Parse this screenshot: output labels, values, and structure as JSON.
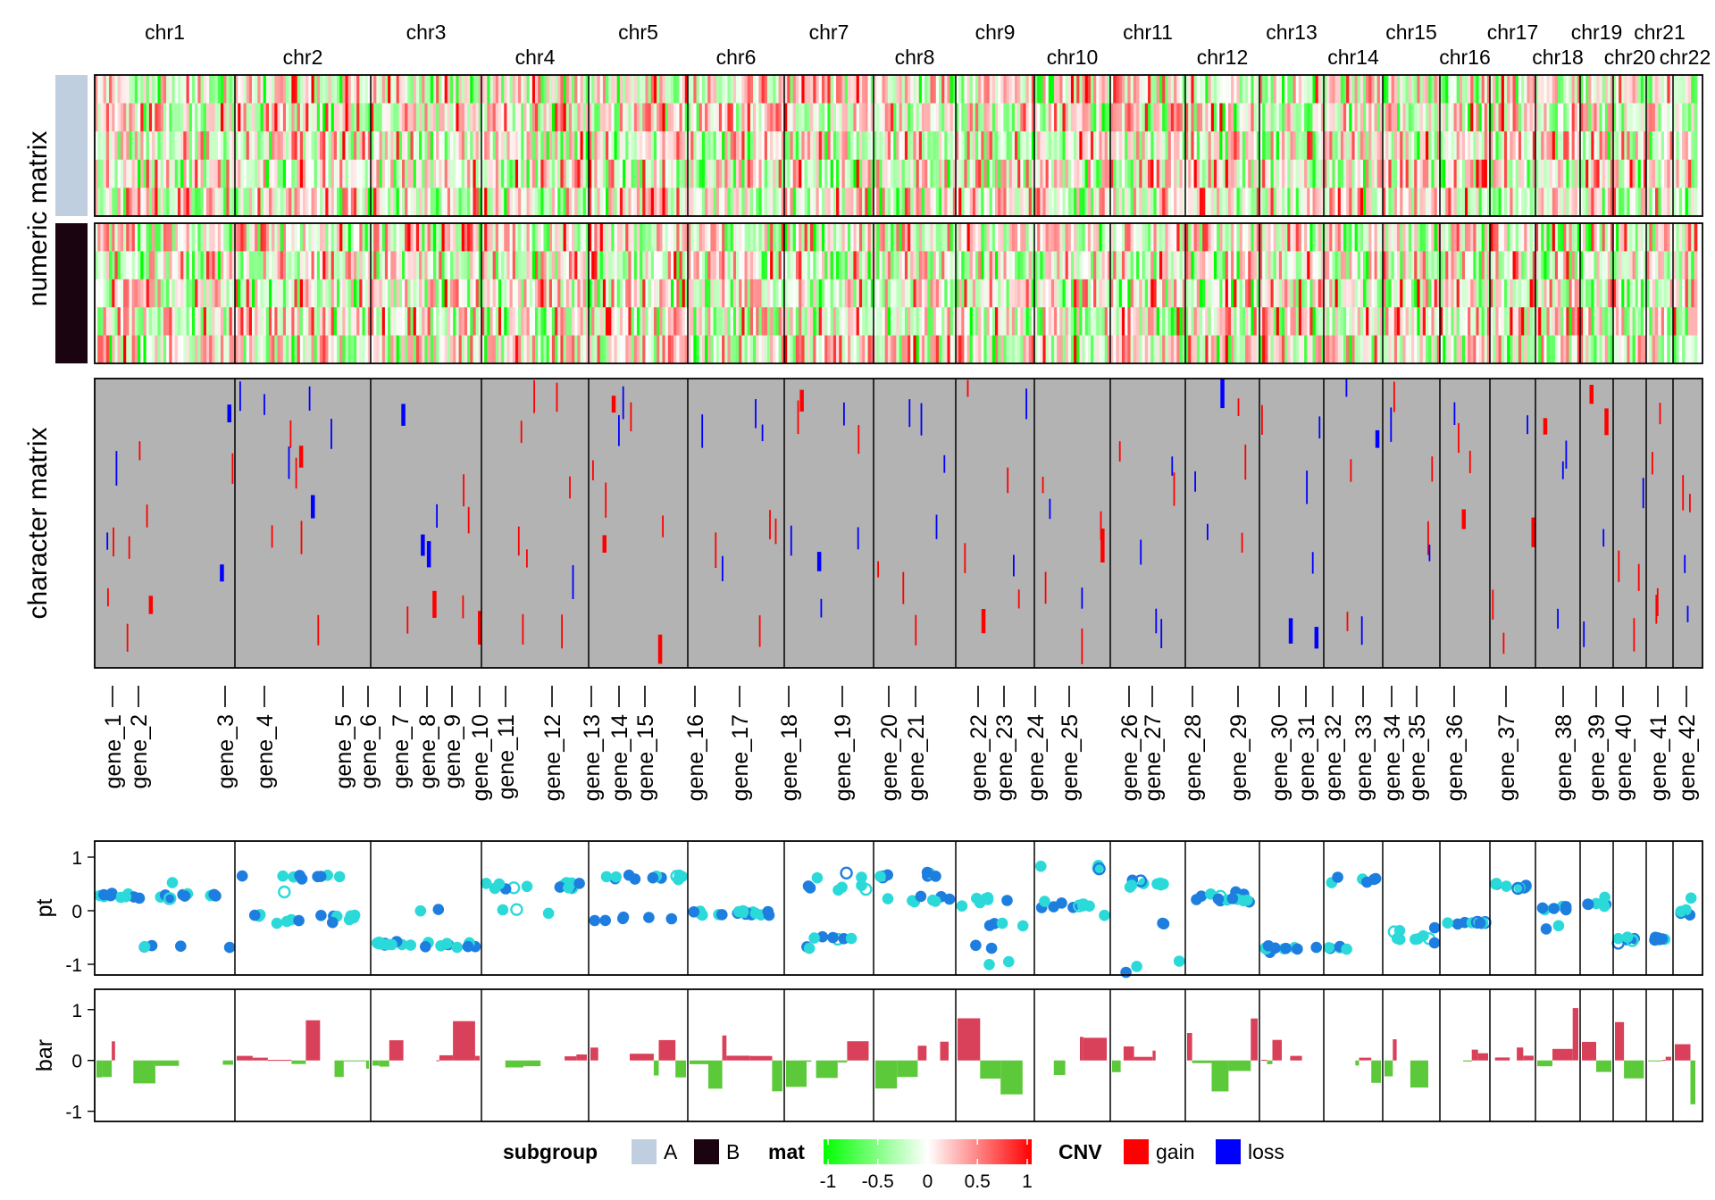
{
  "chart_data": [
    {
      "type": "heatmap",
      "title": "",
      "row_title": "numeric matrix",
      "columns_split_by": "chromosome",
      "chromosomes": [
        "chr1",
        "chr2",
        "chr3",
        "chr4",
        "chr5",
        "chr6",
        "chr7",
        "chr8",
        "chr9",
        "chr10",
        "chr11",
        "chr12",
        "chr13",
        "chr14",
        "chr15",
        "chr16",
        "chr17",
        "chr18",
        "chr19",
        "chr20",
        "chr21",
        "chr22"
      ],
      "row_groups": [
        {
          "name": "A",
          "rows": 5
        },
        {
          "name": "B",
          "rows": 5
        }
      ],
      "color_scale": {
        "name": "mat",
        "breaks": [
          -1,
          -0.5,
          0,
          0.5,
          1
        ],
        "colors": [
          "#00ff00",
          "#ffffff",
          "#ff0000"
        ]
      }
    },
    {
      "type": "heatmap",
      "row_title": "character matrix",
      "background_color": "#b3b3b3",
      "categories": {
        "name": "CNV",
        "levels": [
          "gain",
          "loss"
        ],
        "colors": [
          "#ff0000",
          "#0000ff"
        ]
      }
    },
    {
      "type": "annotation_labels",
      "labels": [
        "gene_1",
        "gene_2",
        "gene_3",
        "gene_4",
        "gene_5",
        "gene_6",
        "gene_7",
        "gene_8",
        "gene_9",
        "gene_10",
        "gene_11",
        "gene_12",
        "gene_13",
        "gene_14",
        "gene_15",
        "gene_16",
        "gene_17",
        "gene_18",
        "gene_19",
        "gene_20",
        "gene_21",
        "gene_22",
        "gene_23",
        "gene_24",
        "gene_25",
        "gene_26",
        "gene_27",
        "gene_28",
        "gene_29",
        "gene_30",
        "gene_31",
        "gene_32",
        "gene_33",
        "gene_34",
        "gene_35",
        "gene_36",
        "gene_37",
        "gene_38",
        "gene_39",
        "gene_40",
        "gene_41",
        "gene_42"
      ]
    },
    {
      "type": "scatter",
      "ylabel": "pt",
      "ylim": [
        -1.2,
        1.3
      ],
      "yticks": [
        -1,
        0,
        1
      ],
      "colors": [
        "#1e7ee0",
        "#2bd9d9"
      ]
    },
    {
      "type": "bar",
      "ylabel": "bar",
      "ylim": [
        -1.2,
        1.4
      ],
      "yticks": [
        -1,
        0,
        1
      ],
      "colors": {
        "positive": "#d9405a",
        "negative": "#5cc93a"
      }
    }
  ],
  "legend": {
    "subgroup_title": "subgroup",
    "subgroup_items": [
      {
        "label": "A",
        "color": "#bfcfe0"
      },
      {
        "label": "B",
        "color": "#1a0410"
      }
    ],
    "mat_title": "mat",
    "mat_ticks": [
      "-1",
      "-0.5",
      "0",
      "0.5",
      "1"
    ],
    "cnv_title": "CNV",
    "cnv_items": [
      {
        "label": "gain",
        "color": "#ff0000"
      },
      {
        "label": "loss",
        "color": "#0000ff"
      }
    ]
  }
}
